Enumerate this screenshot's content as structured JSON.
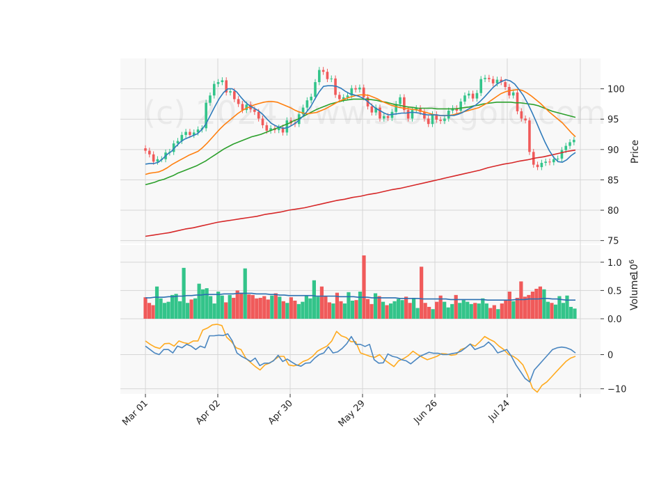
{
  "chart_data": {
    "type": "candlestick",
    "watermark": "(c) 2024 www.stockgold.com",
    "x_tick_labels": [
      "Mar 01",
      "Apr 02",
      "Apr 30",
      "May 29",
      "Jun 26",
      "Jul 24"
    ],
    "price_panel": {
      "ylabel": "Price",
      "ylim": [
        74.5,
        105
      ],
      "y_ticks": [
        75,
        80,
        85,
        90,
        95,
        100
      ],
      "close": [
        89.8,
        89.2,
        88.0,
        88.4,
        88.4,
        89.5,
        89.6,
        91.0,
        91.4,
        92.4,
        92.9,
        92.4,
        92.8,
        93.3,
        93.5,
        97.7,
        98.9,
        100.8,
        101.1,
        101.4,
        99.4,
        99.6,
        98.3,
        97.5,
        96.5,
        97.4,
        96.6,
        96.2,
        95.1,
        94.0,
        93.1,
        93.5,
        93.2,
        93.6,
        92.8,
        94.8,
        94.3,
        94.2,
        95.8,
        96.9,
        98.1,
        98.7,
        101.1,
        103.1,
        102.8,
        101.6,
        101.7,
        99.0,
        98.3,
        98.6,
        98.9,
        100.1,
        99.9,
        100.2,
        98.6,
        97.1,
        96.1,
        96.9,
        95.1,
        95.5,
        95.2,
        96.2,
        97.5,
        98.6,
        96.5,
        95.1,
        96.5,
        96.8,
        96.2,
        95.1,
        94.2,
        95.8,
        94.9,
        94.7,
        95.1,
        96.4,
        96.8,
        96.4,
        97.9,
        98.9,
        99.2,
        98.4,
        99.3,
        101.6,
        101.8,
        101.6,
        100.9,
        101.5,
        101.1,
        100.3,
        98.9,
        99.4,
        96.3,
        95.1,
        94.8,
        89.6,
        87.5,
        87.1,
        87.8,
        88.0,
        87.9,
        88.4,
        88.5,
        89.9,
        90.6,
        91.2,
        91.6
      ],
      "ma_short": [
        87.6,
        87.7,
        87.7,
        87.9,
        88.5,
        89.2,
        89.7,
        90.5,
        91.2,
        91.7,
        92.0,
        92.3,
        92.6,
        93.3,
        94.3,
        95.7,
        97.1,
        98.4,
        99.4,
        100.0,
        100.0,
        99.5,
        98.6,
        97.8,
        97.2,
        96.8,
        96.4,
        95.8,
        95.0,
        94.3,
        93.9,
        93.6,
        93.5,
        93.7,
        94.1,
        94.6,
        95.3,
        96.1,
        97.0,
        98.3,
        99.5,
        100.4,
        100.5,
        100.5,
        100.4,
        100.1,
        99.6,
        99.2,
        99.0,
        98.8,
        98.5,
        98.0,
        97.4,
        96.8,
        96.4,
        96.0,
        95.7,
        95.8,
        95.9,
        96.0,
        96.0,
        96.1,
        96.1,
        96.0,
        95.8,
        95.7,
        95.7,
        95.7,
        95.6,
        95.6,
        95.6,
        95.6,
        95.8,
        96.1,
        96.5,
        96.9,
        97.3,
        97.9,
        98.6,
        99.4,
        100.2,
        100.8,
        101.2,
        101.5,
        101.3,
        100.8,
        99.9,
        98.9,
        97.6,
        96.1,
        94.5,
        92.8,
        91.2,
        89.8,
        88.7,
        88.0,
        87.9,
        88.3,
        89.0,
        89.5
      ],
      "ma_mid": [
        85.9,
        86.1,
        86.2,
        86.3,
        86.6,
        87.0,
        87.5,
        87.9,
        88.3,
        88.7,
        89.1,
        89.4,
        89.7,
        90.3,
        91.0,
        91.8,
        92.6,
        93.4,
        94.1,
        94.7,
        95.3,
        95.9,
        96.4,
        96.8,
        97.1,
        97.4,
        97.6,
        97.8,
        97.9,
        97.9,
        97.8,
        97.5,
        97.2,
        96.9,
        96.5,
        96.2,
        96.0,
        95.9,
        96.0,
        96.1,
        96.4,
        96.7,
        97.1,
        97.5,
        97.9,
        98.2,
        98.5,
        98.7,
        98.9,
        99.0,
        99.0,
        98.9,
        98.6,
        98.3,
        97.9,
        97.6,
        97.3,
        97.1,
        96.9,
        96.8,
        96.7,
        96.6,
        96.5,
        96.3,
        96.1,
        95.9,
        95.7,
        95.6,
        95.6,
        95.6,
        95.7,
        95.9,
        96.1,
        96.3,
        96.5,
        96.7,
        96.9,
        97.3,
        97.7,
        98.2,
        98.7,
        99.2,
        99.5,
        99.7,
        99.8,
        99.9,
        99.7,
        99.3,
        98.8,
        98.2,
        97.6,
        96.9,
        96.2,
        95.6,
        95.0,
        94.4,
        93.6,
        92.8,
        92.1
      ],
      "ma_long": [
        84.2,
        84.4,
        84.6,
        84.9,
        85.1,
        85.4,
        85.7,
        86.1,
        86.4,
        86.7,
        87.0,
        87.3,
        87.7,
        88.1,
        88.6,
        89.1,
        89.6,
        90.1,
        90.5,
        90.9,
        91.2,
        91.5,
        91.8,
        92.1,
        92.3,
        92.5,
        92.8,
        93.1,
        93.4,
        93.7,
        94.0,
        94.3,
        94.7,
        95.0,
        95.4,
        95.8,
        96.2,
        96.6,
        96.9,
        97.2,
        97.5,
        97.7,
        97.9,
        98.1,
        98.2,
        98.3,
        98.3,
        98.3,
        98.3,
        98.2,
        98.1,
        97.9,
        97.8,
        97.6,
        97.4,
        97.3,
        97.1,
        97.0,
        96.9,
        96.8,
        96.8,
        96.8,
        96.8,
        96.7,
        96.7,
        96.7,
        96.7,
        96.7,
        96.8,
        96.9,
        97.0,
        97.2,
        97.3,
        97.5,
        97.6,
        97.7,
        97.8,
        97.8,
        97.8,
        97.8,
        97.7,
        97.7,
        97.6,
        97.5,
        97.4,
        97.2,
        96.9,
        96.6,
        96.3,
        96.1,
        95.9,
        95.7,
        95.5,
        95.3
      ],
      "ma_200": [
        75.7,
        75.9,
        76.1,
        76.3,
        76.6,
        76.9,
        77.1,
        77.4,
        77.7,
        78.0,
        78.2,
        78.4,
        78.6,
        78.8,
        79.0,
        79.3,
        79.5,
        79.7,
        80.0,
        80.2,
        80.4,
        80.7,
        81.0,
        81.3,
        81.6,
        81.8,
        82.1,
        82.3,
        82.6,
        82.8,
        83.1,
        83.4,
        83.6,
        83.9,
        84.2,
        84.5,
        84.8,
        85.1,
        85.4,
        85.7,
        86.0,
        86.3,
        86.6,
        87.0,
        87.3,
        87.6,
        87.8,
        88.1,
        88.3,
        88.6,
        88.8,
        89.1,
        89.4,
        89.7,
        89.9
      ]
    },
    "volume_panel": {
      "ylabel": "Volume",
      "unit_label": "10^6",
      "ylim": [
        0,
        1.12
      ],
      "y_ticks": [
        "0.0",
        "0.5",
        "1.0"
      ],
      "values": [
        0.38,
        0.28,
        0.24,
        0.57,
        0.36,
        0.28,
        0.3,
        0.42,
        0.44,
        0.31,
        0.9,
        0.28,
        0.34,
        0.36,
        0.62,
        0.52,
        0.54,
        0.4,
        0.27,
        0.48,
        0.41,
        0.29,
        0.42,
        0.37,
        0.5,
        0.46,
        0.89,
        0.43,
        0.42,
        0.36,
        0.37,
        0.4,
        0.34,
        0.41,
        0.45,
        0.39,
        0.31,
        0.28,
        0.38,
        0.32,
        0.26,
        0.3,
        0.4,
        0.36,
        0.68,
        0.39,
        0.57,
        0.4,
        0.29,
        0.27,
        0.46,
        0.31,
        0.27,
        0.47,
        0.32,
        0.33,
        0.48,
        1.12,
        0.35,
        0.26,
        0.45,
        0.4,
        0.3,
        0.24,
        0.27,
        0.31,
        0.35,
        0.33,
        0.39,
        0.28,
        0.37,
        0.19,
        0.92,
        0.28,
        0.21,
        0.17,
        0.3,
        0.41,
        0.3,
        0.2,
        0.26,
        0.42,
        0.28,
        0.33,
        0.3,
        0.26,
        0.28,
        0.27,
        0.36,
        0.27,
        0.19,
        0.24,
        0.17,
        0.27,
        0.32,
        0.48,
        0.31,
        0.37,
        0.66,
        0.39,
        0.42,
        0.48,
        0.53,
        0.57,
        0.52,
        0.3,
        0.28,
        0.25,
        0.4,
        0.28,
        0.41,
        0.21,
        0.18
      ],
      "volume_ma": [
        0.37,
        0.37,
        0.38,
        0.38,
        0.38,
        0.39,
        0.39,
        0.4,
        0.4,
        0.41,
        0.41,
        0.42,
        0.42,
        0.43,
        0.43,
        0.43,
        0.43,
        0.44,
        0.44,
        0.44,
        0.45,
        0.45,
        0.45,
        0.45,
        0.44,
        0.44,
        0.44,
        0.43,
        0.43,
        0.42,
        0.42,
        0.41,
        0.41,
        0.41,
        0.41,
        0.41,
        0.41,
        0.4,
        0.4,
        0.4,
        0.4,
        0.4,
        0.39,
        0.39,
        0.39,
        0.39,
        0.38,
        0.38,
        0.38,
        0.37,
        0.37,
        0.37,
        0.37,
        0.37,
        0.37,
        0.36,
        0.36,
        0.36,
        0.36,
        0.36,
        0.35,
        0.35,
        0.35,
        0.35,
        0.35,
        0.35,
        0.34,
        0.34,
        0.34,
        0.34,
        0.34,
        0.34,
        0.34,
        0.34,
        0.33,
        0.33,
        0.33,
        0.33,
        0.33,
        0.33,
        0.34,
        0.34,
        0.34,
        0.35,
        0.35,
        0.35,
        0.36,
        0.36,
        0.35,
        0.35,
        0.34,
        0.33,
        0.33,
        0.33
      ]
    },
    "oscillator_panel": {
      "ylim": [
        -11.5,
        10.5
      ],
      "y_ticks": [
        "0",
        "−10"
      ],
      "line_blue": [
        2.5,
        1.5,
        0.5,
        0.0,
        1.5,
        1.5,
        0.5,
        2.5,
        2.0,
        3.0,
        2.5,
        1.5,
        2.5,
        2.0,
        5.5,
        5.5,
        5.7,
        5.6,
        6.1,
        4.0,
        0.5,
        -0.5,
        -1.2,
        -2.0,
        -1.0,
        -3.2,
        -2.5,
        -2.5,
        -1.8,
        -0.2,
        -2.0,
        -1.3,
        -2.2,
        -3.0,
        -3.4,
        -2.5,
        -2.4,
        -1.0,
        0.0,
        0.5,
        2.3,
        0.5,
        0.8,
        1.8,
        3.2,
        5.3,
        3.0,
        3.0,
        2.4,
        3.0,
        -1.5,
        -2.5,
        -2.4,
        0.2,
        -0.5,
        -0.8,
        -1.5,
        -1.8,
        -2.7,
        -1.6,
        -0.5,
        0.1,
        0.7,
        0.4,
        0.4,
        0.0,
        0.0,
        0.3,
        0.5,
        1.0,
        2.0,
        3.1,
        1.5,
        2.0,
        2.5,
        3.7,
        2.4,
        0.5,
        1.0,
        1.5,
        -0.5,
        -3.0,
        -5.0,
        -7.0,
        -8.0,
        -4.5,
        -3.0,
        -1.5,
        0.0,
        1.5,
        2.0,
        2.2,
        2.0,
        1.5,
        0.5
      ],
      "line_orange": [
        4.0,
        3.0,
        2.2,
        1.8,
        3.2,
        3.3,
        2.5,
        4.0,
        3.5,
        3.2,
        4.0,
        4.0,
        7.2,
        7.8,
        8.7,
        8.9,
        8.5,
        5.1,
        3.8,
        2.0,
        1.5,
        -1.0,
        -2.3,
        -3.5,
        -4.5,
        -3.0,
        -2.5,
        -1.5,
        -0.5,
        -0.5,
        -3.0,
        -3.3,
        -3.0,
        -2.0,
        -1.5,
        -0.5,
        1.0,
        1.8,
        2.5,
        4.0,
        6.8,
        5.5,
        5.0,
        3.8,
        3.8,
        0.5,
        0.0,
        -0.5,
        -0.8,
        0.0,
        -1.5,
        -2.5,
        -3.5,
        -1.8,
        -1.2,
        -0.3,
        1.0,
        0.0,
        -0.8,
        -1.5,
        -1.0,
        -0.5,
        0.3,
        0.2,
        -0.2,
        0.0,
        1.5,
        2.0,
        3.1,
        2.5,
        3.8,
        5.3,
        4.5,
        3.8,
        2.5,
        1.5,
        0.0,
        -0.5,
        -1.5,
        -3.0,
        -6.0,
        -9.8,
        -11.0,
        -9.0,
        -8.0,
        -6.5,
        -5.0,
        -3.5,
        -2.0,
        -1.0,
        -0.5
      ]
    }
  },
  "colors": {
    "up": "#33c48a",
    "down": "#f05a5a",
    "ma_short": "#2f7bbb",
    "ma_mid": "#ff7f0e",
    "ma_long": "#2ca02c",
    "ma_200": "#d62728",
    "volume_ma": "#2a6fb0",
    "osc_blue": "#4a86c0",
    "osc_orange": "#ffaa1e",
    "panel_bg": "#f8f8f8",
    "grid": "#d6d6d6"
  }
}
